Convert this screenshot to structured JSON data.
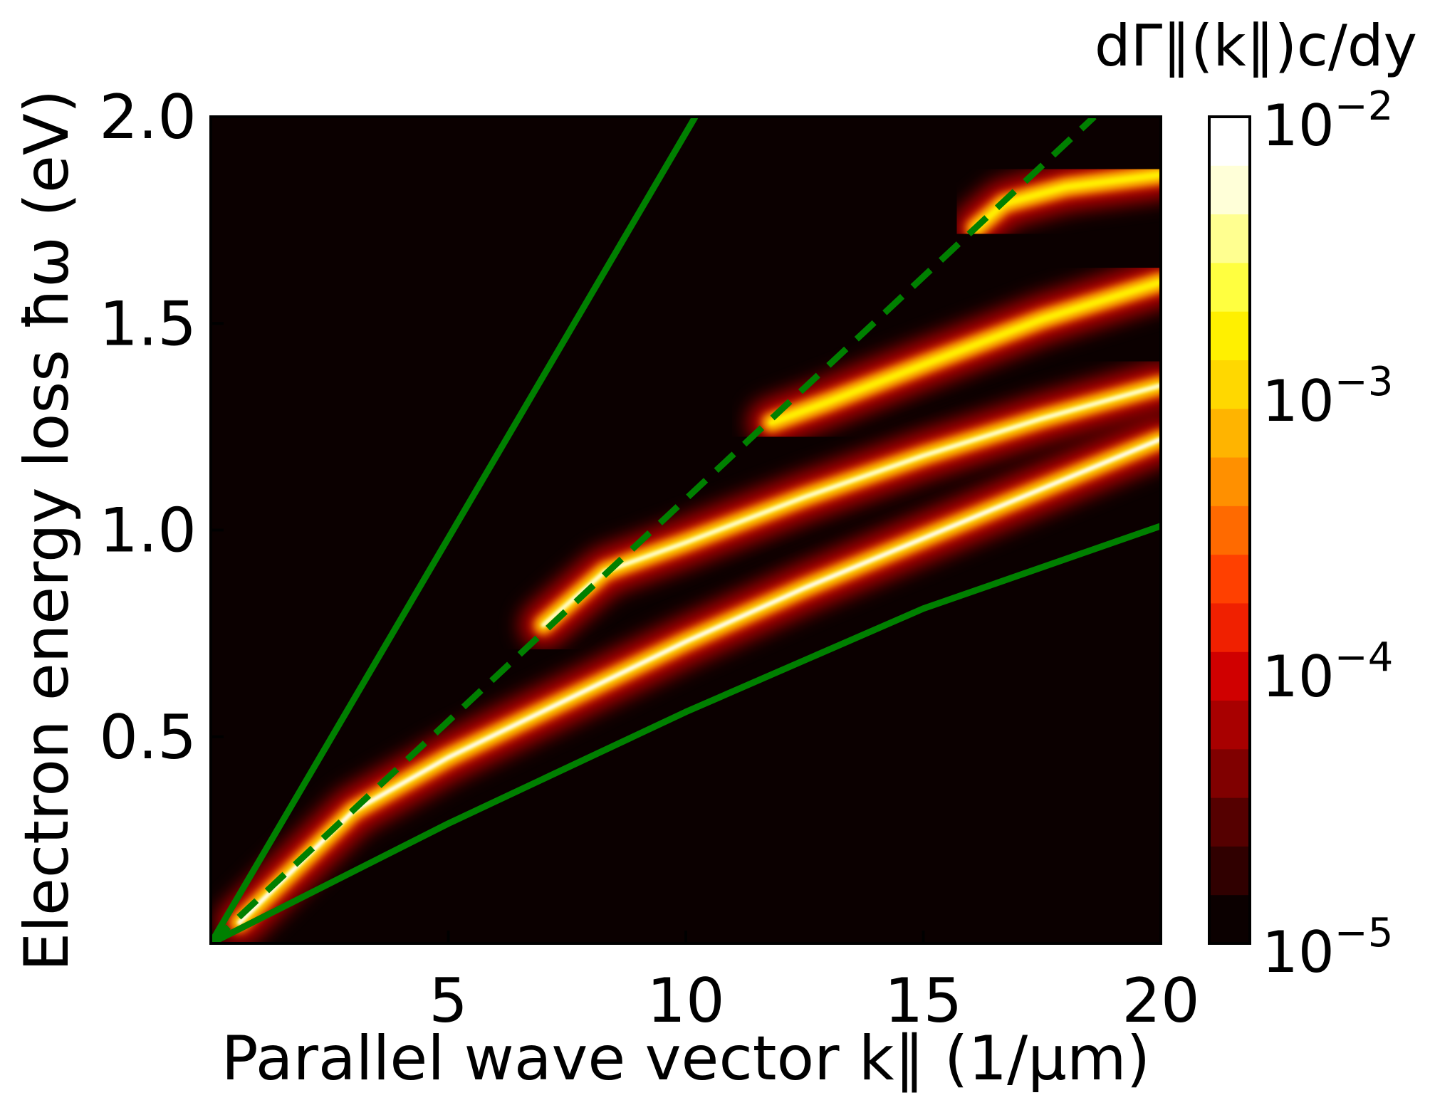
{
  "chart_data": {
    "type": "heatmap",
    "xlabel": "Parallel wave vector k∥ (1/μm)",
    "ylabel": "Electron energy loss ħω (eV)",
    "xlim": [
      0,
      20
    ],
    "ylim": [
      0,
      2.0
    ],
    "x_ticks": [
      5,
      10,
      15,
      20
    ],
    "x_tick_labels": [
      "5",
      "10",
      "15",
      "20"
    ],
    "y_ticks": [
      0.5,
      1.0,
      1.5,
      2.0
    ],
    "y_tick_labels": [
      "0.5",
      "1.0",
      "1.5",
      "2.0"
    ],
    "grid": false,
    "background_color": "#0b0000",
    "colorbar": {
      "label": "dΓ∥(k∥)c/dy",
      "scale": "log",
      "min": 1e-05,
      "max": 0.01,
      "ticks": [
        {
          "value": 1e-05,
          "base": "10",
          "exp": "−5"
        },
        {
          "value": 0.0001,
          "base": "10",
          "exp": "−4"
        },
        {
          "value": 0.001,
          "base": "10",
          "exp": "−3"
        },
        {
          "value": 0.01,
          "base": "10",
          "exp": "−2"
        }
      ],
      "colormap": [
        "#0b0000",
        "#300000",
        "#550000",
        "#800000",
        "#a80000",
        "#d00000",
        "#f02000",
        "#ff4000",
        "#ff6a00",
        "#ff9000",
        "#ffb400",
        "#ffd800",
        "#fff000",
        "#ffff40",
        "#ffff90",
        "#ffffd8",
        "#ffffff"
      ]
    },
    "lines": [
      {
        "style": "solid",
        "color": "#008000",
        "x": [
          0,
          10.2
        ],
        "y": [
          0,
          2.0
        ]
      },
      {
        "style": "dashed",
        "color": "#008000",
        "x": [
          0,
          18.6
        ],
        "y": [
          0,
          2.0
        ]
      },
      {
        "style": "solid",
        "color": "#008000",
        "x": [
          0,
          5,
          10,
          15,
          20
        ],
        "y": [
          0,
          0.29,
          0.56,
          0.81,
          1.01
        ]
      }
    ],
    "bands": [
      {
        "peak": 0.01,
        "x": [
          0.6,
          3,
          5,
          7.5,
          10,
          12.5,
          15,
          17.5,
          20
        ],
        "y": [
          0.05,
          0.32,
          0.45,
          0.59,
          0.73,
          0.86,
          0.98,
          1.1,
          1.22
        ]
      },
      {
        "peak": 0.006,
        "x": [
          7.0,
          8.3,
          10,
          12.5,
          15,
          17.5,
          20
        ],
        "y": [
          0.77,
          0.9,
          0.97,
          1.08,
          1.18,
          1.27,
          1.35
        ]
      },
      {
        "peak": 0.002,
        "x": [
          11.8,
          13,
          15,
          17.5,
          20
        ],
        "y": [
          1.26,
          1.31,
          1.4,
          1.51,
          1.6
        ]
      },
      {
        "peak": 0.002,
        "x": [
          16.1,
          16.7,
          18,
          20
        ],
        "y": [
          1.73,
          1.79,
          1.83,
          1.86
        ]
      }
    ]
  }
}
